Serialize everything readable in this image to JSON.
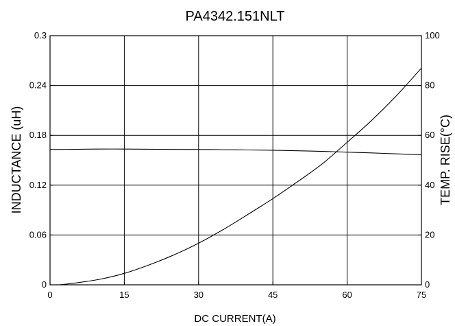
{
  "chart_data": {
    "type": "line",
    "title": "PA4342.151NLT",
    "xlabel": "DC CURRENT(A)",
    "ylabel_left": "INDUCTANCE (uH)",
    "ylabel_right": "TEMP. RISE(°C)",
    "xlim": [
      0,
      75
    ],
    "ylim_left": [
      0,
      0.3
    ],
    "ylim_right": [
      0,
      100
    ],
    "x_ticks": [
      "0",
      "15",
      "30",
      "45",
      "60",
      "75"
    ],
    "y_left_ticks": [
      "0",
      "0.06",
      "0.12",
      "0.18",
      "0.24",
      "0.3"
    ],
    "y_right_ticks": [
      "0",
      "20",
      "40",
      "60",
      "80",
      "100"
    ],
    "grid": true,
    "series": [
      {
        "axis": "left",
        "x": [
          0,
          5,
          10,
          15,
          20,
          25,
          30,
          35,
          40,
          45,
          50,
          55,
          60,
          65,
          70,
          75
        ],
        "y": [
          0.163,
          0.1632,
          0.1635,
          0.1635,
          0.1633,
          0.1631,
          0.163,
          0.1627,
          0.1624,
          0.162,
          0.1614,
          0.1607,
          0.1598,
          0.1588,
          0.1577,
          0.1566
        ]
      },
      {
        "axis": "right",
        "x": [
          2,
          5,
          10,
          15,
          20,
          25,
          30,
          35,
          40,
          45,
          50,
          55,
          60,
          65,
          70,
          75
        ],
        "y": [
          0,
          0.7,
          2.2,
          4.6,
          8.0,
          12.0,
          16.7,
          22.2,
          28.3,
          34.6,
          41.4,
          48.6,
          57.2,
          66.1,
          76.0,
          87.0
        ]
      }
    ]
  }
}
